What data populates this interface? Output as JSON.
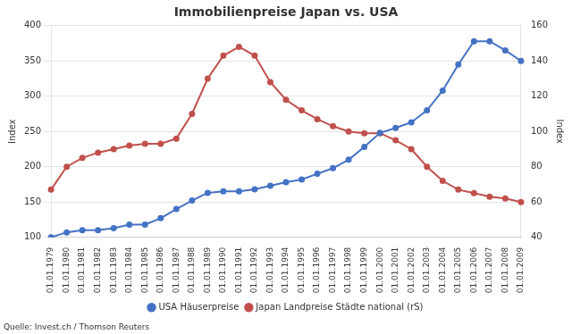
{
  "chart_data": {
    "type": "line",
    "title": "Immobilienpreise Japan vs. USA",
    "annotations": [
      "Quelle: Invest.ch / Thomson Reuters"
    ],
    "ylabel": "Index",
    "y2label": "Index",
    "categories": [
      "01.01.1979",
      "01.01.1980",
      "01.01.1981",
      "01.01.1982",
      "01.01.1983",
      "01.01.1984",
      "01.01.1985",
      "01.01.1986",
      "01.01.1987",
      "01.01.1988",
      "01.01.1989",
      "01.01.1990",
      "01.01.1991",
      "01.01.1992",
      "01.01.1993",
      "01.01.1994",
      "01.01.1995",
      "01.01.1996",
      "01.01.1997",
      "01.01.1998",
      "01.01.1999",
      "01.01.2000",
      "01.01.2001",
      "01.01.2002",
      "01.01.2003",
      "01.01.2004",
      "01.01.2005",
      "01.01.2006",
      "01.01.2007",
      "01.01.2008",
      "01.01.2009"
    ],
    "series": [
      {
        "name": "USA Häuserpreise",
        "color": "#4472C4",
        "axis": "y",
        "values": [
          100,
          107,
          110,
          110,
          113,
          118,
          118,
          127,
          140,
          152,
          163,
          165,
          165,
          168,
          173,
          178,
          182,
          190,
          198,
          210,
          228,
          248,
          255,
          263,
          280,
          308,
          345,
          378,
          378,
          365,
          350
        ]
      },
      {
        "name": "Japan Landpreise Städte national (rS)",
        "color": "#C0504D",
        "axis": "y2",
        "values": [
          67,
          80,
          85,
          88,
          90,
          92,
          93,
          93,
          96,
          110,
          130,
          143,
          148,
          143,
          128,
          118,
          112,
          107,
          103,
          100,
          99,
          99,
          95,
          90,
          80,
          72,
          67,
          65,
          63,
          62,
          60
        ]
      }
    ],
    "ylim": [
      100,
      400
    ],
    "yticks": [
      100,
      150,
      200,
      250,
      300,
      350,
      400
    ],
    "y2lim": [
      40,
      160
    ],
    "y2ticks": [
      40,
      60,
      80,
      100,
      120,
      140,
      160
    ],
    "grid": true,
    "legend": "bottom",
    "marker": "circle"
  }
}
